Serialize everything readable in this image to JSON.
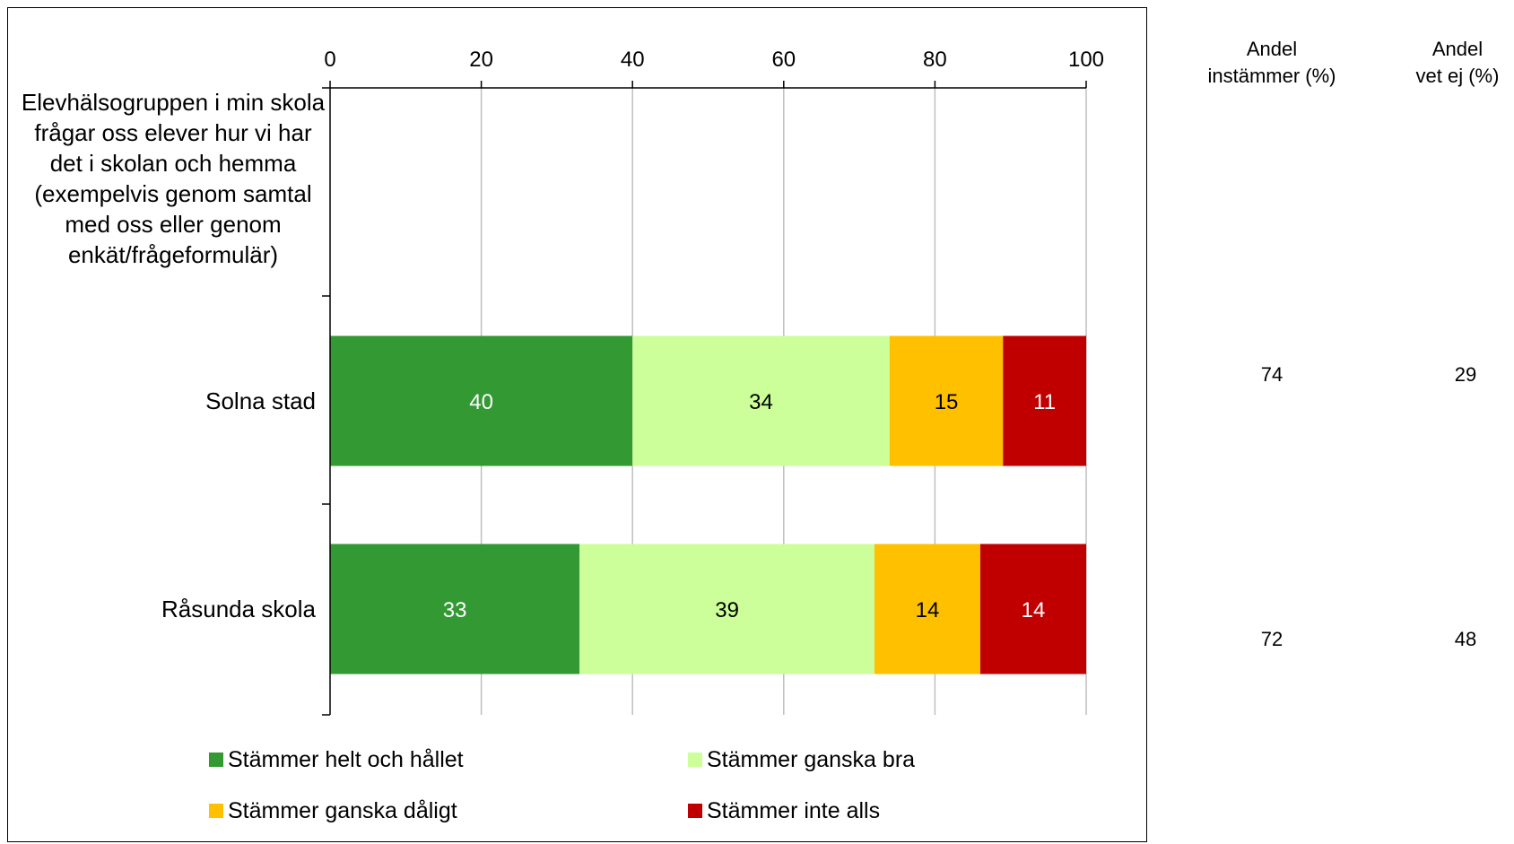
{
  "question_text": "Elevhälsogruppen i min skola frågar oss elever hur vi har det i skolan och hemma (exempelvis genom samtal med oss eller genom enkät/frågeformulär)",
  "side_table": {
    "headers": [
      "Andel\ninstämmer (%)",
      "Andel\nvet ej (%)"
    ],
    "rows": [
      {
        "instammer": "74",
        "vet_ej": "29"
      },
      {
        "instammer": "72",
        "vet_ej": "48"
      }
    ]
  },
  "chart_data": {
    "type": "bar",
    "orientation": "horizontal",
    "stacked": true,
    "categories": [
      "Solna stad",
      "Råsunda skola"
    ],
    "series": [
      {
        "name": "Stämmer helt och hållet",
        "values": [
          40,
          33
        ],
        "color": "#339933",
        "label_color": "#ffffff"
      },
      {
        "name": "Stämmer ganska bra",
        "values": [
          34,
          39
        ],
        "color": "#ccff99",
        "label_color": "#000000"
      },
      {
        "name": "Stämmer ganska dåligt",
        "values": [
          15,
          14
        ],
        "color": "#ffc000",
        "label_color": "#000000"
      },
      {
        "name": "Stämmer inte alls",
        "values": [
          11,
          14
        ],
        "color": "#c00000",
        "label_color": "#ffffff"
      }
    ],
    "xlim": [
      0,
      100
    ],
    "xticks": [
      0,
      20,
      40,
      60,
      80,
      100
    ],
    "x_axis_position": "top",
    "grid": true,
    "legend_position": "bottom"
  }
}
